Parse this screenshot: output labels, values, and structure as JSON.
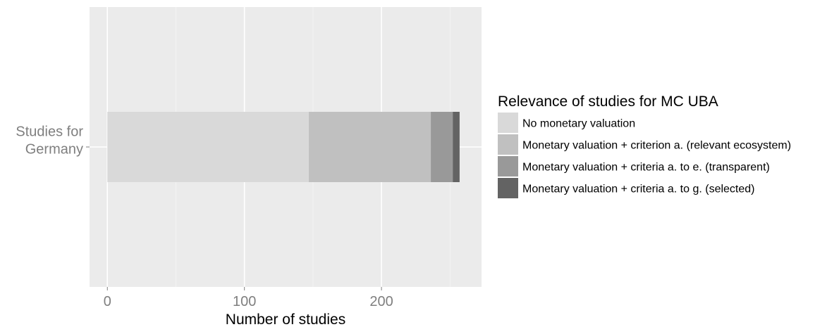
{
  "chart_data": {
    "type": "bar",
    "orientation": "horizontal",
    "stacked": true,
    "categories": [
      "Studies for\nGermany"
    ],
    "series": [
      {
        "name": "No monetary valuation",
        "values": [
          147
        ],
        "color": "#d9d9d9"
      },
      {
        "name": "Monetary valuation + criterion a. (relevant ecosystem)",
        "values": [
          89
        ],
        "color": "#c0c0c0"
      },
      {
        "name": "Monetary valuation + criteria a. to e. (transparent)",
        "values": [
          16
        ],
        "color": "#999999"
      },
      {
        "name": "Monetary valuation + criteria a. to g. (selected)",
        "values": [
          5
        ],
        "color": "#636363"
      }
    ],
    "xlabel": "Number of studies",
    "ylabel": "",
    "xlim": [
      -13,
      273
    ],
    "xticks": [
      0,
      100,
      200
    ],
    "xtick_labels": [
      "0",
      "100",
      "200"
    ],
    "grid": true,
    "panel_background": "#ebebeb",
    "legend": {
      "title": "Relevance of studies for MC UBA",
      "placement": "right"
    }
  }
}
